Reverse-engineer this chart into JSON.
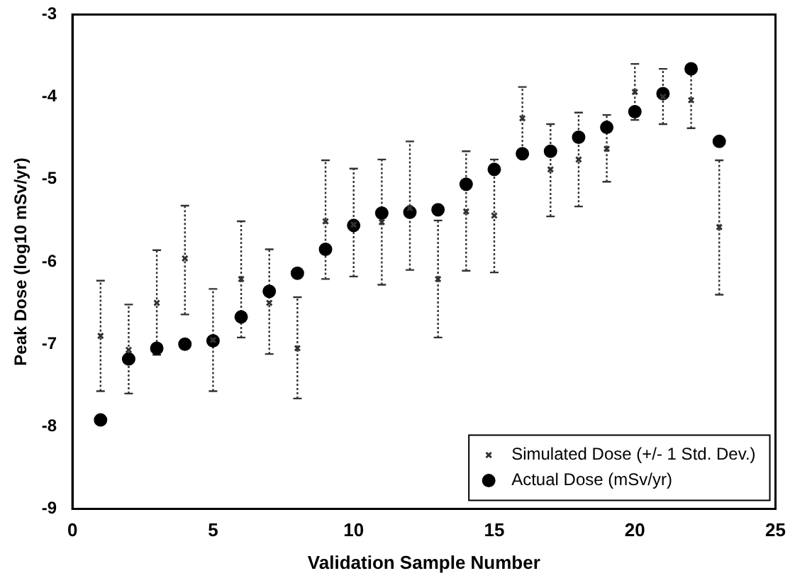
{
  "chart_data": {
    "type": "scatter",
    "xlabel": "Validation Sample Number",
    "ylabel": "Peak Dose (log10 mSv/yr)",
    "xlim": [
      0,
      25
    ],
    "xticks": [
      0,
      5,
      10,
      15,
      20,
      25
    ],
    "ylim": [
      -9,
      -3
    ],
    "yticks": [
      -9,
      -8,
      -7,
      -6,
      -5,
      -4,
      -3
    ],
    "grid": false,
    "legend": "bottom right",
    "x": [
      1,
      2,
      3,
      4,
      5,
      6,
      7,
      8,
      9,
      10,
      11,
      12,
      13,
      14,
      15,
      16,
      17,
      18,
      19,
      20,
      21,
      22,
      23
    ],
    "series": [
      {
        "name": "Simulated Dose (+/- 1 Std. Dev.)",
        "color": "#333333",
        "marker": "cross",
        "line_style": "dotted",
        "values": [
          -6.9,
          -7.07,
          -6.5,
          -5.96,
          -6.95,
          -6.21,
          -6.5,
          -7.05,
          -5.51,
          -5.55,
          -5.52,
          -5.35,
          -6.21,
          -5.39,
          -5.44,
          -4.26,
          -4.88,
          -4.76,
          -4.63,
          -3.94,
          -4.0,
          -4.04,
          -5.58
        ],
        "errors": [
          [
            -7.57,
            -6.23
          ],
          [
            -7.6,
            -6.52
          ],
          [
            -7.13,
            -5.86
          ],
          [
            -6.64,
            -5.32
          ],
          [
            -7.57,
            -6.33
          ],
          [
            -6.92,
            -5.51
          ],
          [
            -7.12,
            -5.85
          ],
          [
            -7.66,
            -6.43
          ],
          [
            -6.21,
            -4.77
          ],
          [
            -6.18,
            -4.87
          ],
          [
            -6.28,
            -4.76
          ],
          [
            -6.1,
            -4.54
          ],
          [
            -6.92,
            -5.5
          ],
          [
            -6.11,
            -4.66
          ],
          [
            -6.13,
            -4.76
          ],
          [
            -4.65,
            -3.88
          ],
          [
            -5.45,
            -4.33
          ],
          [
            -5.33,
            -4.19
          ],
          [
            -5.03,
            -4.22
          ],
          [
            -4.28,
            -3.6
          ],
          [
            -4.33,
            -3.66
          ],
          [
            -4.38,
            -3.7
          ],
          [
            -6.4,
            -4.77
          ]
        ]
      },
      {
        "name": "Actual Dose (mSv/yr)",
        "color": "#000000",
        "marker": "circle",
        "values": [
          -7.92,
          -7.18,
          -7.05,
          -7.0,
          -6.96,
          -6.67,
          -6.36,
          -6.14,
          -5.85,
          -5.56,
          -5.41,
          -5.4,
          -5.37,
          -5.06,
          -4.88,
          -4.69,
          -4.66,
          -4.49,
          -4.37,
          -4.18,
          -3.96,
          -3.66,
          -4.54
        ]
      }
    ]
  }
}
